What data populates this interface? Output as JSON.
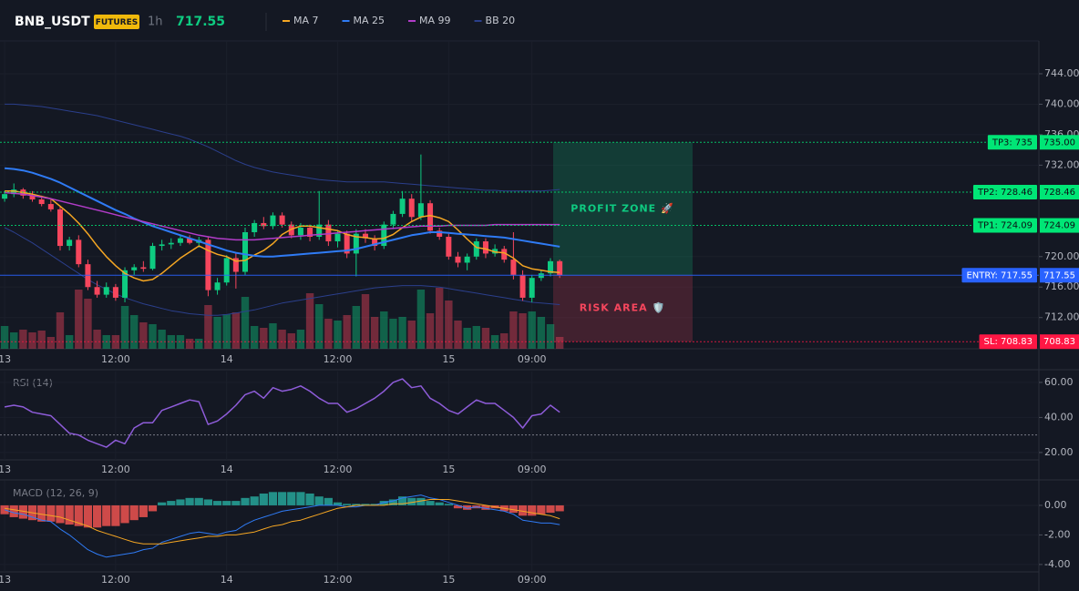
{
  "chart_data": {
    "type": "candlestick",
    "symbol": "BNB_USDT",
    "badge": "FUTURES",
    "interval": "1h",
    "last_price": "717.55",
    "xlim": [
      -0.5,
      111.8
    ],
    "xticks": [
      {
        "value": 0,
        "label": "13"
      },
      {
        "value": 12,
        "label": "12:00"
      },
      {
        "value": 24,
        "label": "14"
      },
      {
        "value": 36,
        "label": "12:00"
      },
      {
        "value": 48,
        "label": "15"
      },
      {
        "value": 57,
        "label": "09:00"
      }
    ],
    "ylim": [
      707.9,
      748.3
    ],
    "yticks": [
      {
        "value": 712,
        "label": "712.00"
      },
      {
        "value": 716,
        "label": "716.00"
      },
      {
        "value": 720,
        "label": "720.00"
      },
      {
        "value": 732,
        "label": "732.00"
      },
      {
        "value": 736,
        "label": "736.00"
      },
      {
        "value": 740,
        "label": "740.00"
      },
      {
        "value": 744,
        "label": "744.00"
      }
    ],
    "grid": true,
    "up_color": "#0ecb81",
    "down_color": "#f6465d",
    "ohlc": {
      "open": [
        727.6,
        728.2,
        728.8,
        728.0,
        727.5,
        726.9,
        726.2,
        721.4,
        722.2,
        719.0,
        716.0,
        715.0,
        716.0,
        714.6,
        718.2,
        718.6,
        718.4,
        721.4,
        721.6,
        721.8,
        722.4,
        721.8,
        722.2,
        715.6,
        716.6,
        719.8,
        718.0,
        723.2,
        724.4,
        724.0,
        725.4,
        724.2,
        722.8,
        723.8,
        722.6,
        724.2,
        722.0,
        723.0,
        720.4,
        723.0,
        722.4,
        721.4,
        724.2,
        725.6,
        727.6,
        725.2,
        727.0,
        723.4,
        722.6,
        720.0,
        719.2,
        720.0,
        722.0,
        720.4,
        721.0,
        719.6,
        717.6,
        714.6,
        717.2,
        717.8,
        719.4
      ],
      "high": [
        728.6,
        729.6,
        729.0,
        728.6,
        728.0,
        727.6,
        726.6,
        722.6,
        722.8,
        719.6,
        716.8,
        716.6,
        716.4,
        718.6,
        719.0,
        719.4,
        721.8,
        722.2,
        722.4,
        722.8,
        722.8,
        722.6,
        722.6,
        717.2,
        720.2,
        720.4,
        723.8,
        724.8,
        725.2,
        725.8,
        725.8,
        724.6,
        724.4,
        724.2,
        728.6,
        724.8,
        723.4,
        723.4,
        723.6,
        723.6,
        722.8,
        724.6,
        726.0,
        728.6,
        728.2,
        733.4,
        727.4,
        723.8,
        723.0,
        720.6,
        720.4,
        722.4,
        722.4,
        721.6,
        721.4,
        723.2,
        718.2,
        717.6,
        718.2,
        719.8,
        719.6
      ],
      "low": [
        727.2,
        727.8,
        727.6,
        727.2,
        726.6,
        725.9,
        720.8,
        720.8,
        718.6,
        715.6,
        714.6,
        714.6,
        714.2,
        714.0,
        717.6,
        718.0,
        718.2,
        720.8,
        721.0,
        721.4,
        721.6,
        721.2,
        714.8,
        715.0,
        716.2,
        715.8,
        717.6,
        722.6,
        723.6,
        723.6,
        723.8,
        722.4,
        722.2,
        722.0,
        722.2,
        721.4,
        721.2,
        719.8,
        717.4,
        721.8,
        720.8,
        721.0,
        723.6,
        725.2,
        724.6,
        724.8,
        723.0,
        722.2,
        719.6,
        718.6,
        718.2,
        719.6,
        719.8,
        720.0,
        719.2,
        717.0,
        714.2,
        714.0,
        716.8,
        717.4,
        717.2
      ],
      "close": [
        728.2,
        728.8,
        728.0,
        727.5,
        726.9,
        726.2,
        721.4,
        722.2,
        719.0,
        716.0,
        715.0,
        716.0,
        714.6,
        718.2,
        718.6,
        718.4,
        721.4,
        721.6,
        721.8,
        722.4,
        721.8,
        722.2,
        715.6,
        716.6,
        719.8,
        718.0,
        723.2,
        724.4,
        724.0,
        725.4,
        724.2,
        722.8,
        723.8,
        722.6,
        724.2,
        722.0,
        723.0,
        720.4,
        723.0,
        722.4,
        721.4,
        724.2,
        725.6,
        727.6,
        725.2,
        727.0,
        723.4,
        722.6,
        720.0,
        719.2,
        720.0,
        722.0,
        720.4,
        721.0,
        719.6,
        717.6,
        714.6,
        717.2,
        717.8,
        719.4,
        717.55
      ]
    },
    "volume": [
      25,
      18,
      21,
      18,
      20,
      13,
      40,
      15,
      65,
      55,
      21,
      15,
      15,
      47,
      37,
      29,
      27,
      21,
      15,
      15,
      11,
      11,
      48,
      35,
      38,
      40,
      57,
      25,
      23,
      28,
      21,
      17,
      21,
      61,
      49,
      33,
      31,
      37,
      47,
      60,
      35,
      41,
      33,
      35,
      31,
      65,
      39,
      67,
      53,
      31,
      23,
      25,
      23,
      15,
      17,
      41,
      39,
      41,
      35,
      27,
      13
    ],
    "series": [
      {
        "name": "MA 7",
        "color": "#f5a623",
        "values": [
          728.6,
          728.6,
          728.4,
          728.2,
          727.9,
          727.6,
          726.6,
          725.6,
          724.4,
          723.0,
          721.4,
          720.0,
          718.8,
          717.8,
          717.2,
          716.8,
          717.0,
          717.8,
          718.8,
          719.8,
          720.6,
          721.4,
          720.8,
          720.3,
          720.0,
          719.4,
          719.5,
          720.2,
          720.8,
          721.7,
          722.9,
          723.6,
          724.0,
          724.0,
          723.8,
          723.6,
          723.4,
          722.9,
          722.6,
          722.5,
          722.3,
          722.4,
          722.9,
          723.8,
          724.6,
          725.2,
          725.4,
          725.1,
          724.6,
          723.5,
          722.3,
          721.2,
          721.0,
          720.6,
          720.5,
          719.8,
          718.8,
          718.4,
          718.2,
          718.0,
          717.9
        ]
      },
      {
        "name": "MA 25",
        "color": "#2f7bf5",
        "values": [
          731.6,
          731.5,
          731.3,
          731.0,
          730.6,
          730.2,
          729.7,
          729.1,
          728.5,
          727.9,
          727.3,
          726.7,
          726.1,
          725.6,
          725.0,
          724.5,
          724.0,
          723.6,
          723.2,
          722.8,
          722.4,
          722.0,
          721.6,
          721.2,
          720.8,
          720.5,
          720.3,
          720.1,
          720.0,
          720.0,
          720.1,
          720.2,
          720.3,
          720.4,
          720.5,
          720.6,
          720.7,
          720.8,
          721.0,
          721.3,
          721.6,
          721.9,
          722.2,
          722.5,
          722.8,
          723.0,
          723.2,
          723.2,
          723.1,
          723.0,
          722.9,
          722.8,
          722.7,
          722.6,
          722.5,
          722.3,
          722.1,
          721.9,
          721.7,
          721.5,
          721.3
        ]
      },
      {
        "name": "MA 99",
        "color": "#b23cc9",
        "values": [
          728.4,
          728.3,
          728.2,
          728.0,
          727.8,
          727.6,
          727.3,
          727.0,
          726.7,
          726.4,
          726.1,
          725.8,
          725.5,
          725.2,
          724.9,
          724.6,
          724.3,
          724.0,
          723.7,
          723.4,
          723.1,
          722.8,
          722.6,
          722.4,
          722.3,
          722.2,
          722.2,
          722.2,
          722.3,
          722.4,
          722.5,
          722.6,
          722.7,
          722.8,
          722.9,
          723.0,
          723.1,
          723.2,
          723.3,
          723.4,
          723.5,
          723.6,
          723.7,
          723.8,
          723.9,
          724.0,
          724.0,
          724.0,
          724.1,
          724.1,
          724.1,
          724.1,
          724.1,
          724.2,
          724.2,
          724.2,
          724.2,
          724.2,
          724.2,
          724.2,
          724.2
        ]
      },
      {
        "name": "BB 20",
        "color": "#2b3f8c",
        "upper": [
          740.0,
          740.0,
          739.9,
          739.8,
          739.7,
          739.5,
          739.3,
          739.1,
          738.9,
          738.7,
          738.5,
          738.2,
          737.9,
          737.6,
          737.3,
          737.0,
          736.7,
          736.4,
          736.1,
          735.8,
          735.4,
          734.9,
          734.4,
          733.8,
          733.2,
          732.6,
          732.1,
          731.7,
          731.4,
          731.1,
          730.9,
          730.7,
          730.5,
          730.3,
          730.1,
          730.0,
          729.9,
          729.8,
          729.8,
          729.8,
          729.8,
          729.8,
          729.7,
          729.6,
          729.5,
          729.4,
          729.3,
          729.2,
          729.1,
          729.0,
          728.9,
          728.8,
          728.7,
          728.7,
          728.6,
          728.6,
          728.6,
          728.6,
          728.6,
          728.7,
          728.8
        ],
        "lower": [
          723.8,
          723.2,
          722.5,
          721.8,
          721.0,
          720.2,
          719.4,
          718.6,
          717.8,
          717.0,
          716.3,
          715.7,
          715.1,
          714.6,
          714.2,
          713.8,
          713.5,
          713.2,
          712.9,
          712.7,
          712.5,
          712.4,
          712.3,
          712.3,
          712.4,
          712.6,
          712.8,
          713.0,
          713.3,
          713.6,
          713.9,
          714.1,
          714.3,
          714.5,
          714.7,
          714.9,
          715.1,
          715.3,
          715.5,
          715.7,
          715.9,
          716.0,
          716.1,
          716.2,
          716.2,
          716.2,
          716.1,
          716.0,
          715.8,
          715.6,
          715.4,
          715.2,
          715.0,
          714.8,
          714.6,
          714.4,
          714.2,
          714.0,
          713.9,
          713.8,
          713.7
        ]
      }
    ],
    "levels": [
      {
        "label": "TP3: 735",
        "value": 735,
        "value_label": "735.00",
        "color": "#00e676"
      },
      {
        "label": "TP2: 728.46",
        "value": 728.46,
        "value_label": "728.46",
        "color": "#00e676"
      },
      {
        "label": "TP1: 724.09",
        "value": 724.09,
        "value_label": "724.09",
        "color": "#00e676"
      },
      {
        "label": "ENTRY: 717.55",
        "value": 717.55,
        "value_label": "717.55",
        "color": "#2962ff"
      },
      {
        "label": "SL: 708.83",
        "value": 708.83,
        "value_label": "708.83",
        "color": "#ff1744"
      }
    ],
    "zones": [
      {
        "label": "PROFIT ZONE 🚀",
        "from": 717.55,
        "to": 735,
        "color": "#0ecb81"
      },
      {
        "label": "RISK AREA 🛡️",
        "from": 708.83,
        "to": 717.55,
        "color": "#f6465d"
      }
    ],
    "rsi": {
      "title": "RSI (14)",
      "color": "#8e5cd9",
      "ylim": [
        15.8,
        66.2
      ],
      "yticks": [
        {
          "value": 20,
          "label": "20.00"
        },
        {
          "value": 40,
          "label": "40.00"
        },
        {
          "value": 60,
          "label": "60.00"
        }
      ],
      "levels": [
        30
      ],
      "values": [
        46,
        47,
        46,
        43,
        42,
        41,
        36,
        31,
        30,
        27,
        25,
        23,
        27,
        25,
        34,
        37,
        37,
        44,
        46,
        48,
        50,
        49,
        36,
        38,
        42,
        47,
        53,
        55,
        51,
        57,
        55,
        56,
        58,
        55,
        51,
        48,
        48,
        43,
        45,
        48,
        51,
        55,
        60,
        62,
        57,
        58,
        51,
        48,
        44,
        42,
        46,
        50,
        48,
        48,
        44,
        40,
        34,
        41,
        42,
        47,
        43
      ]
    },
    "macd": {
      "title": "MACD (12, 26, 9)",
      "ylim": [
        -4.5,
        1.66
      ],
      "yticks": [
        {
          "value": 0,
          "label": "0.00"
        },
        {
          "value": -2,
          "label": "-2.00"
        },
        {
          "value": -4,
          "label": "-4.00"
        }
      ],
      "hist_up_color": "#26a69a",
      "hist_down_color": "#ef5350",
      "histogram": [
        -0.6,
        -0.8,
        -0.9,
        -1.0,
        -1.1,
        -1.1,
        -1.2,
        -1.3,
        -1.4,
        -1.5,
        -1.5,
        -1.4,
        -1.4,
        -1.2,
        -1.0,
        -0.8,
        -0.4,
        0.2,
        0.3,
        0.4,
        0.5,
        0.5,
        0.4,
        0.3,
        0.3,
        0.3,
        0.5,
        0.6,
        0.8,
        0.9,
        0.9,
        0.9,
        0.9,
        0.8,
        0.6,
        0.5,
        0.2,
        0.1,
        0.1,
        0.1,
        0.1,
        0.3,
        0.4,
        0.6,
        0.5,
        0.5,
        0.3,
        0.2,
        0.1,
        -0.2,
        -0.3,
        -0.2,
        -0.3,
        -0.2,
        -0.4,
        -0.5,
        -0.7,
        -0.7,
        -0.6,
        -0.5,
        -0.4
      ],
      "macd_color": "#2f7bf5",
      "macd": [
        -0.3,
        -0.5,
        -0.6,
        -0.8,
        -1.0,
        -1.1,
        -1.6,
        -2.0,
        -2.5,
        -3.0,
        -3.3,
        -3.5,
        -3.4,
        -3.3,
        -3.2,
        -3.0,
        -2.9,
        -2.5,
        -2.3,
        -2.1,
        -1.9,
        -1.8,
        -1.9,
        -2.0,
        -1.8,
        -1.7,
        -1.3,
        -1.0,
        -0.8,
        -0.6,
        -0.4,
        -0.3,
        -0.2,
        -0.1,
        0.0,
        0.0,
        0.0,
        -0.1,
        -0.1,
        0.0,
        0.0,
        0.2,
        0.3,
        0.5,
        0.6,
        0.7,
        0.5,
        0.4,
        0.2,
        0.0,
        -0.2,
        -0.1,
        -0.2,
        -0.3,
        -0.4,
        -0.6,
        -1.0,
        -1.1,
        -1.2,
        -1.2,
        -1.3
      ],
      "signal_color": "#f5a623",
      "signal": [
        -0.2,
        -0.3,
        -0.4,
        -0.5,
        -0.6,
        -0.7,
        -0.8,
        -1.0,
        -1.2,
        -1.4,
        -1.7,
        -1.9,
        -2.1,
        -2.3,
        -2.5,
        -2.6,
        -2.6,
        -2.6,
        -2.5,
        -2.4,
        -2.3,
        -2.2,
        -2.1,
        -2.1,
        -2.0,
        -2.0,
        -1.9,
        -1.8,
        -1.6,
        -1.4,
        -1.3,
        -1.1,
        -1.0,
        -0.8,
        -0.6,
        -0.4,
        -0.2,
        -0.1,
        0.0,
        0.0,
        0.0,
        0.0,
        0.1,
        0.1,
        0.2,
        0.3,
        0.4,
        0.4,
        0.4,
        0.3,
        0.2,
        0.1,
        0.0,
        -0.1,
        -0.2,
        -0.3,
        -0.4,
        -0.5,
        -0.6,
        -0.7,
        -0.9
      ]
    }
  }
}
